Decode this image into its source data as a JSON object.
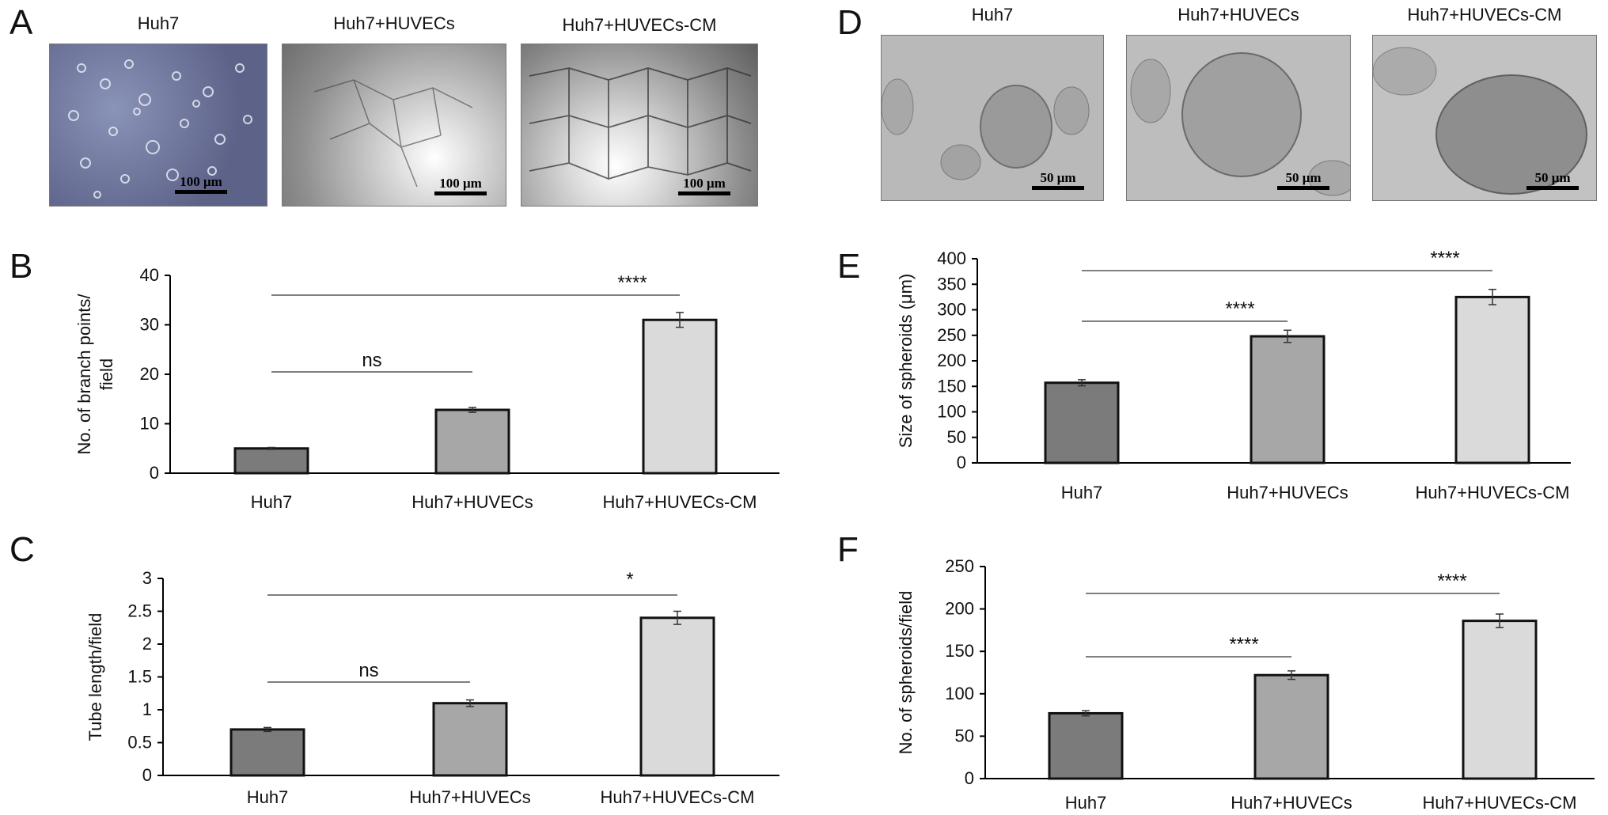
{
  "panels": {
    "A": {
      "letter": "A",
      "images": [
        {
          "caption": "Huh7",
          "scalebar": "100 μm",
          "style": "blue"
        },
        {
          "caption": "Huh7+HUVECs",
          "scalebar": "100 μm",
          "style": "gray"
        },
        {
          "caption": "Huh7+HUVECs-CM",
          "scalebar": "100 μm",
          "style": "gray"
        }
      ]
    },
    "D": {
      "letter": "D",
      "images": [
        {
          "caption": "Huh7",
          "scalebar": "50 μm"
        },
        {
          "caption": "Huh7+HUVECs",
          "scalebar": "50 μm"
        },
        {
          "caption": "Huh7+HUVECs-CM",
          "scalebar": "50 μm"
        }
      ]
    },
    "B": {
      "letter": "B"
    },
    "C": {
      "letter": "C"
    },
    "E": {
      "letter": "E"
    },
    "F": {
      "letter": "F"
    }
  },
  "colors": {
    "bar1": "#7b7b7b",
    "bar2": "#a7a7a7",
    "bar3": "#dadada",
    "sig_line": "#555555"
  },
  "chart_data": [
    {
      "id": "B",
      "type": "bar",
      "categories": [
        "Huh7",
        "Huh7+HUVECs",
        "Huh7+HUVECs-CM"
      ],
      "values": [
        5,
        12.8,
        31
      ],
      "errors": [
        0.2,
        0.5,
        1.5
      ],
      "ylabel": "No. of branch points/\nfield",
      "ylim": [
        0,
        40
      ],
      "yticks": [
        0,
        10,
        20,
        30,
        40
      ],
      "significance": [
        {
          "from": 0,
          "to": 1,
          "label": "ns"
        },
        {
          "from": 0,
          "to": 2,
          "label": "****"
        }
      ]
    },
    {
      "id": "C",
      "type": "bar",
      "categories": [
        "Huh7",
        "Huh7+HUVECs",
        "Huh7+HUVECs-CM"
      ],
      "values": [
        0.7,
        1.1,
        2.4
      ],
      "errors": [
        0.03,
        0.05,
        0.1
      ],
      "ylabel": "Tube length/field",
      "ylim": [
        0,
        3
      ],
      "yticks": [
        0,
        0.5,
        1,
        1.5,
        2,
        2.5,
        3
      ],
      "significance": [
        {
          "from": 0,
          "to": 1,
          "label": "ns"
        },
        {
          "from": 0,
          "to": 2,
          "label": "*"
        }
      ]
    },
    {
      "id": "E",
      "type": "bar",
      "categories": [
        "Huh7",
        "Huh7+HUVECs",
        "Huh7+HUVECs-CM"
      ],
      "values": [
        157,
        248,
        325
      ],
      "errors": [
        6,
        12,
        15
      ],
      "ylabel": "Size of spheroids (μm)",
      "ylim": [
        0,
        400
      ],
      "yticks": [
        0,
        50,
        100,
        150,
        200,
        250,
        300,
        350,
        400
      ],
      "significance": [
        {
          "from": 0,
          "to": 1,
          "label": "****"
        },
        {
          "from": 0,
          "to": 2,
          "label": "****"
        }
      ]
    },
    {
      "id": "F",
      "type": "bar",
      "categories": [
        "Huh7",
        "Huh7+HUVECs",
        "Huh7+HUVECs-CM"
      ],
      "values": [
        77,
        122,
        186
      ],
      "errors": [
        3,
        5,
        8
      ],
      "ylabel": "No. of spheroids/field",
      "ylim": [
        0,
        250
      ],
      "yticks": [
        0,
        50,
        100,
        150,
        200,
        250
      ],
      "significance": [
        {
          "from": 0,
          "to": 1,
          "label": "****"
        },
        {
          "from": 0,
          "to": 2,
          "label": "****"
        }
      ]
    }
  ]
}
